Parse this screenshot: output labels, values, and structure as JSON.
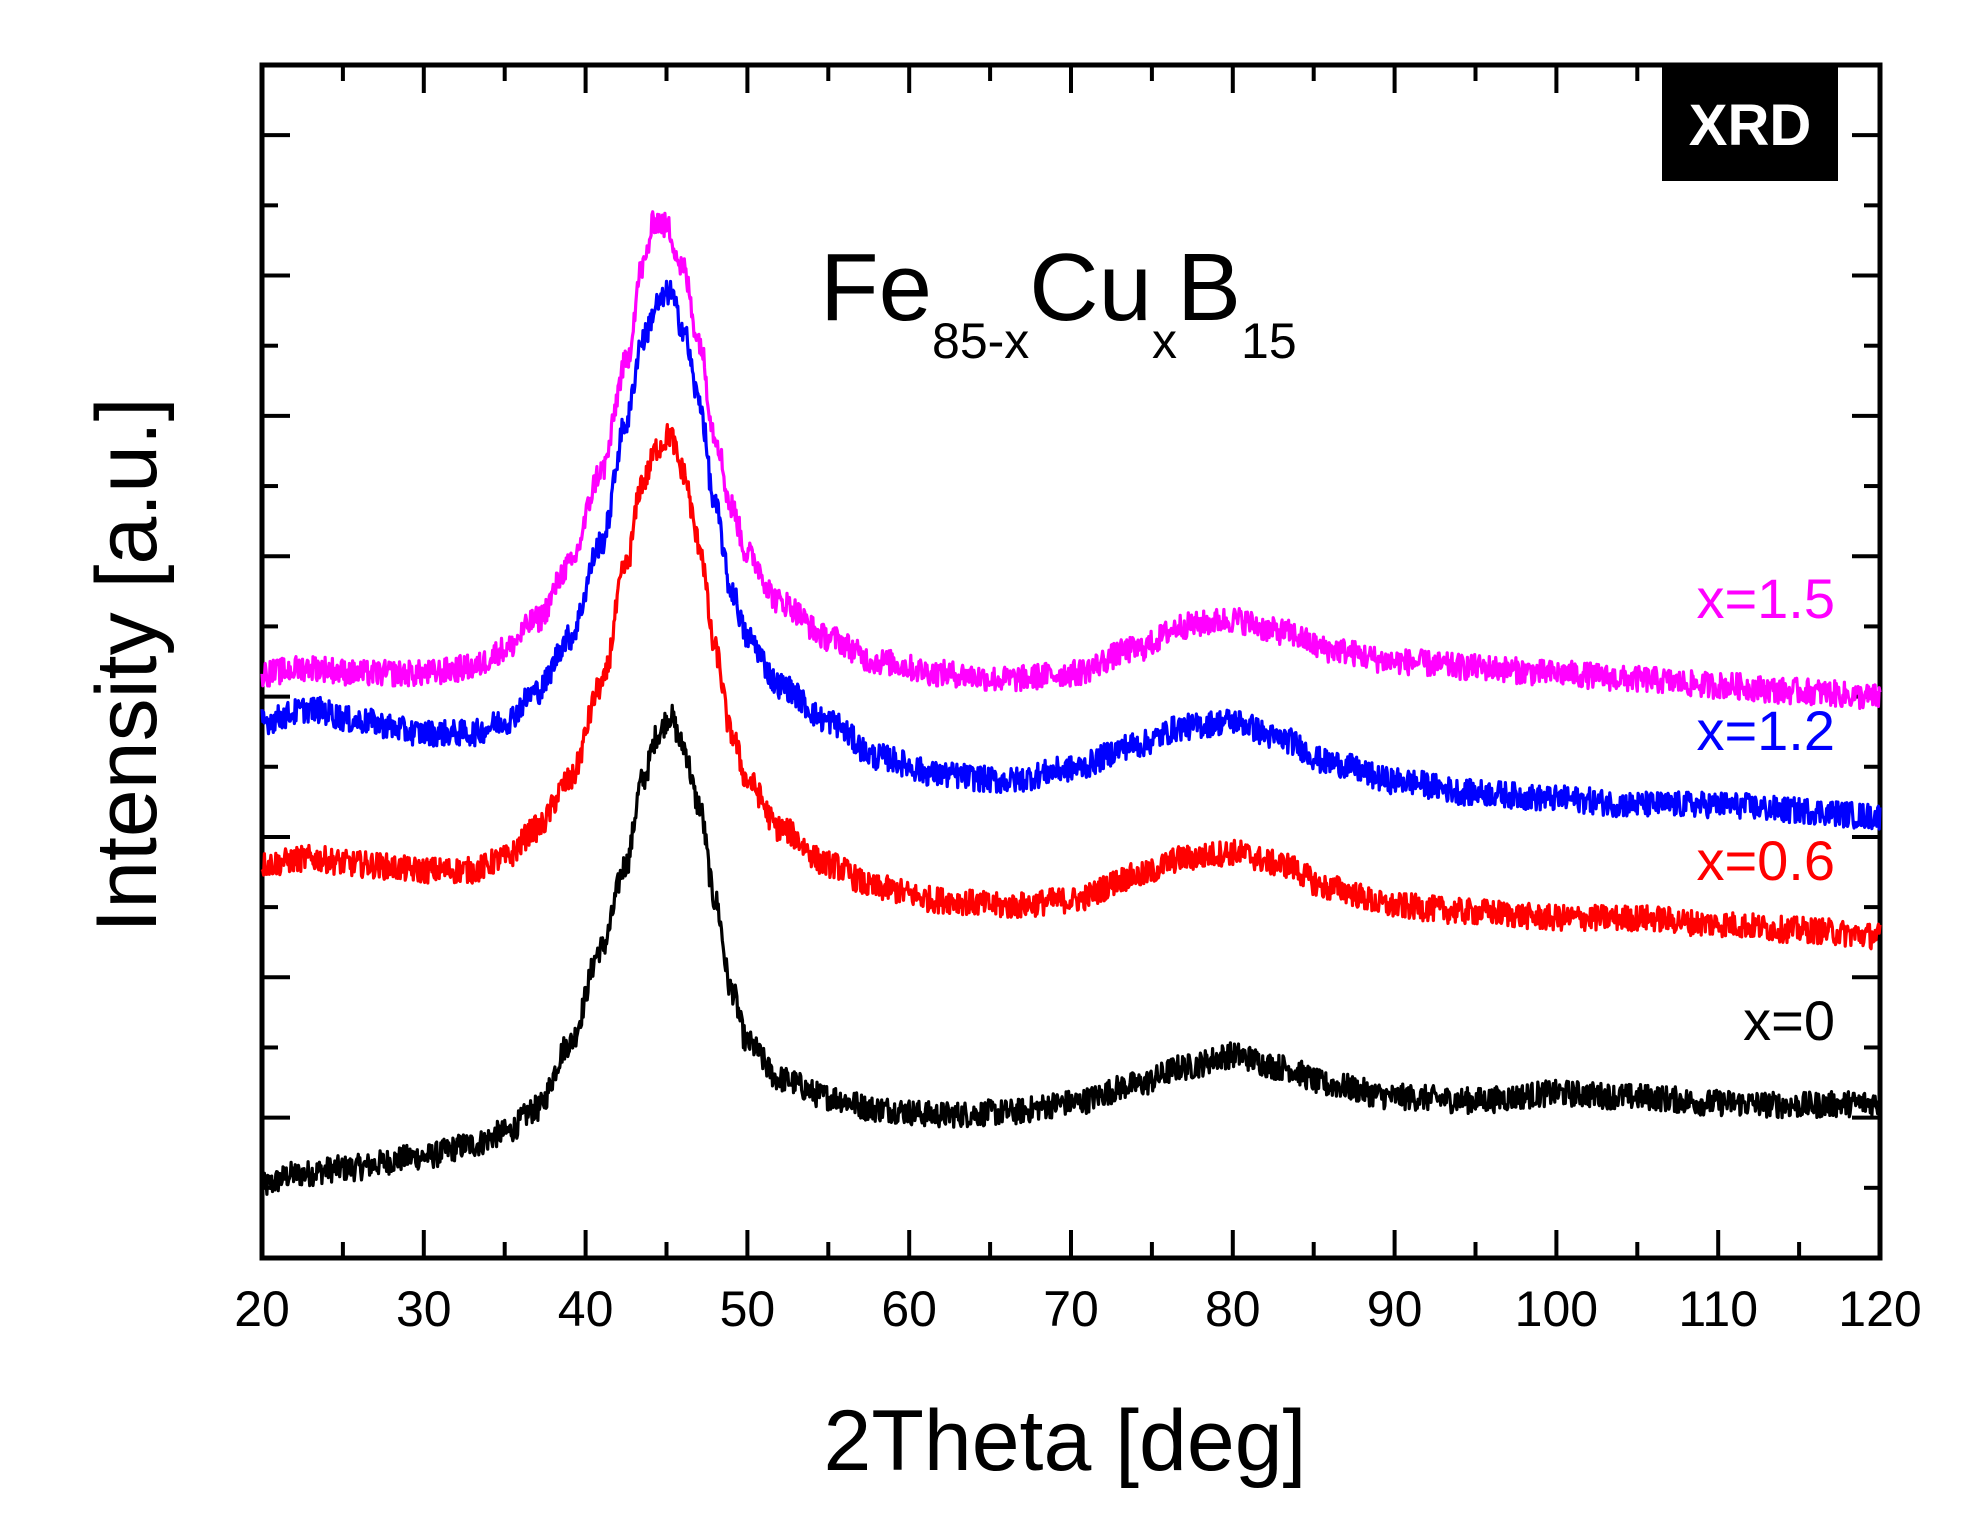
{
  "badge": "XRD",
  "formula": {
    "parts": [
      {
        "text": "Fe",
        "kind": "base"
      },
      {
        "text": "85-x",
        "kind": "sub"
      },
      {
        "text": "Cu",
        "kind": "base"
      },
      {
        "text": "x",
        "kind": "sub"
      },
      {
        "text": "B",
        "kind": "base"
      },
      {
        "text": "15",
        "kind": "sub"
      }
    ]
  },
  "chart_data": {
    "type": "line",
    "title": "",
    "xlabel": "2Theta [deg]",
    "ylabel": "Intensity [a.u.]",
    "xlim": [
      20,
      120
    ],
    "ylim": [
      0,
      1
    ],
    "x_ticks": [
      20,
      30,
      40,
      50,
      60,
      70,
      80,
      90,
      100,
      110,
      120
    ],
    "y_tick_labels_shown": false,
    "grid": false,
    "legend": "inline labels at right",
    "series": [
      {
        "name": "x=0",
        "color": "#000000",
        "points": [
          [
            20,
            0.06
          ],
          [
            22,
            0.07
          ],
          [
            25,
            0.075
          ],
          [
            30,
            0.085
          ],
          [
            33,
            0.095
          ],
          [
            35,
            0.105
          ],
          [
            37,
            0.125
          ],
          [
            39,
            0.18
          ],
          [
            41,
            0.26
          ],
          [
            42.5,
            0.33
          ],
          [
            43.5,
            0.4
          ],
          [
            44.5,
            0.44
          ],
          [
            45.2,
            0.455
          ],
          [
            46,
            0.43
          ],
          [
            47,
            0.38
          ],
          [
            48,
            0.3
          ],
          [
            49,
            0.225
          ],
          [
            50,
            0.18
          ],
          [
            52,
            0.15
          ],
          [
            55,
            0.135
          ],
          [
            58,
            0.125
          ],
          [
            62,
            0.12
          ],
          [
            66,
            0.122
          ],
          [
            70,
            0.13
          ],
          [
            74,
            0.145
          ],
          [
            77,
            0.16
          ],
          [
            80,
            0.17
          ],
          [
            83,
            0.16
          ],
          [
            86,
            0.145
          ],
          [
            90,
            0.135
          ],
          [
            95,
            0.132
          ],
          [
            100,
            0.138
          ],
          [
            105,
            0.135
          ],
          [
            110,
            0.13
          ],
          [
            115,
            0.128
          ],
          [
            120,
            0.13
          ]
        ]
      },
      {
        "name": "x=0.6",
        "color": "#ff0000",
        "points": [
          [
            20,
            0.33
          ],
          [
            23,
            0.335
          ],
          [
            26,
            0.33
          ],
          [
            30,
            0.325
          ],
          [
            33,
            0.325
          ],
          [
            35,
            0.335
          ],
          [
            37,
            0.36
          ],
          [
            39,
            0.4
          ],
          [
            41,
            0.48
          ],
          [
            42.5,
            0.58
          ],
          [
            43.5,
            0.65
          ],
          [
            44.5,
            0.68
          ],
          [
            45.2,
            0.69
          ],
          [
            46,
            0.66
          ],
          [
            47,
            0.6
          ],
          [
            48,
            0.51
          ],
          [
            49,
            0.44
          ],
          [
            50,
            0.4
          ],
          [
            52,
            0.36
          ],
          [
            55,
            0.33
          ],
          [
            58,
            0.31
          ],
          [
            62,
            0.3
          ],
          [
            66,
            0.295
          ],
          [
            70,
            0.3
          ],
          [
            74,
            0.32
          ],
          [
            77,
            0.335
          ],
          [
            80,
            0.34
          ],
          [
            83,
            0.33
          ],
          [
            86,
            0.31
          ],
          [
            90,
            0.295
          ],
          [
            95,
            0.29
          ],
          [
            100,
            0.285
          ],
          [
            105,
            0.285
          ],
          [
            110,
            0.28
          ],
          [
            115,
            0.275
          ],
          [
            120,
            0.27
          ]
        ]
      },
      {
        "name": "x=1.2",
        "color": "#0000ff",
        "points": [
          [
            20,
            0.45
          ],
          [
            23,
            0.46
          ],
          [
            26,
            0.45
          ],
          [
            30,
            0.44
          ],
          [
            33,
            0.44
          ],
          [
            35,
            0.45
          ],
          [
            37,
            0.475
          ],
          [
            39,
            0.52
          ],
          [
            41,
            0.6
          ],
          [
            42.5,
            0.7
          ],
          [
            43.5,
            0.77
          ],
          [
            44.5,
            0.8
          ],
          [
            45.2,
            0.81
          ],
          [
            46,
            0.78
          ],
          [
            47,
            0.72
          ],
          [
            48,
            0.63
          ],
          [
            49,
            0.56
          ],
          [
            50,
            0.52
          ],
          [
            52,
            0.48
          ],
          [
            55,
            0.45
          ],
          [
            58,
            0.42
          ],
          [
            62,
            0.405
          ],
          [
            66,
            0.4
          ],
          [
            70,
            0.41
          ],
          [
            74,
            0.43
          ],
          [
            77,
            0.445
          ],
          [
            80,
            0.45
          ],
          [
            83,
            0.435
          ],
          [
            86,
            0.415
          ],
          [
            90,
            0.4
          ],
          [
            95,
            0.39
          ],
          [
            100,
            0.385
          ],
          [
            105,
            0.38
          ],
          [
            110,
            0.38
          ],
          [
            115,
            0.375
          ],
          [
            120,
            0.37
          ]
        ]
      },
      {
        "name": "x=1.5",
        "color": "#ff00ff",
        "points": [
          [
            20,
            0.49
          ],
          [
            23,
            0.495
          ],
          [
            26,
            0.49
          ],
          [
            30,
            0.49
          ],
          [
            33,
            0.495
          ],
          [
            35,
            0.51
          ],
          [
            37,
            0.535
          ],
          [
            39,
            0.58
          ],
          [
            41,
            0.66
          ],
          [
            42.5,
            0.75
          ],
          [
            43.5,
            0.83
          ],
          [
            44.3,
            0.87
          ],
          [
            45,
            0.865
          ],
          [
            46,
            0.83
          ],
          [
            47,
            0.77
          ],
          [
            48,
            0.69
          ],
          [
            49,
            0.63
          ],
          [
            50,
            0.59
          ],
          [
            52,
            0.55
          ],
          [
            55,
            0.52
          ],
          [
            58,
            0.5
          ],
          [
            62,
            0.49
          ],
          [
            66,
            0.485
          ],
          [
            70,
            0.49
          ],
          [
            74,
            0.51
          ],
          [
            77,
            0.53
          ],
          [
            80,
            0.535
          ],
          [
            83,
            0.525
          ],
          [
            86,
            0.51
          ],
          [
            90,
            0.5
          ],
          [
            95,
            0.495
          ],
          [
            100,
            0.49
          ],
          [
            105,
            0.485
          ],
          [
            110,
            0.48
          ],
          [
            115,
            0.475
          ],
          [
            120,
            0.47
          ]
        ]
      }
    ]
  }
}
